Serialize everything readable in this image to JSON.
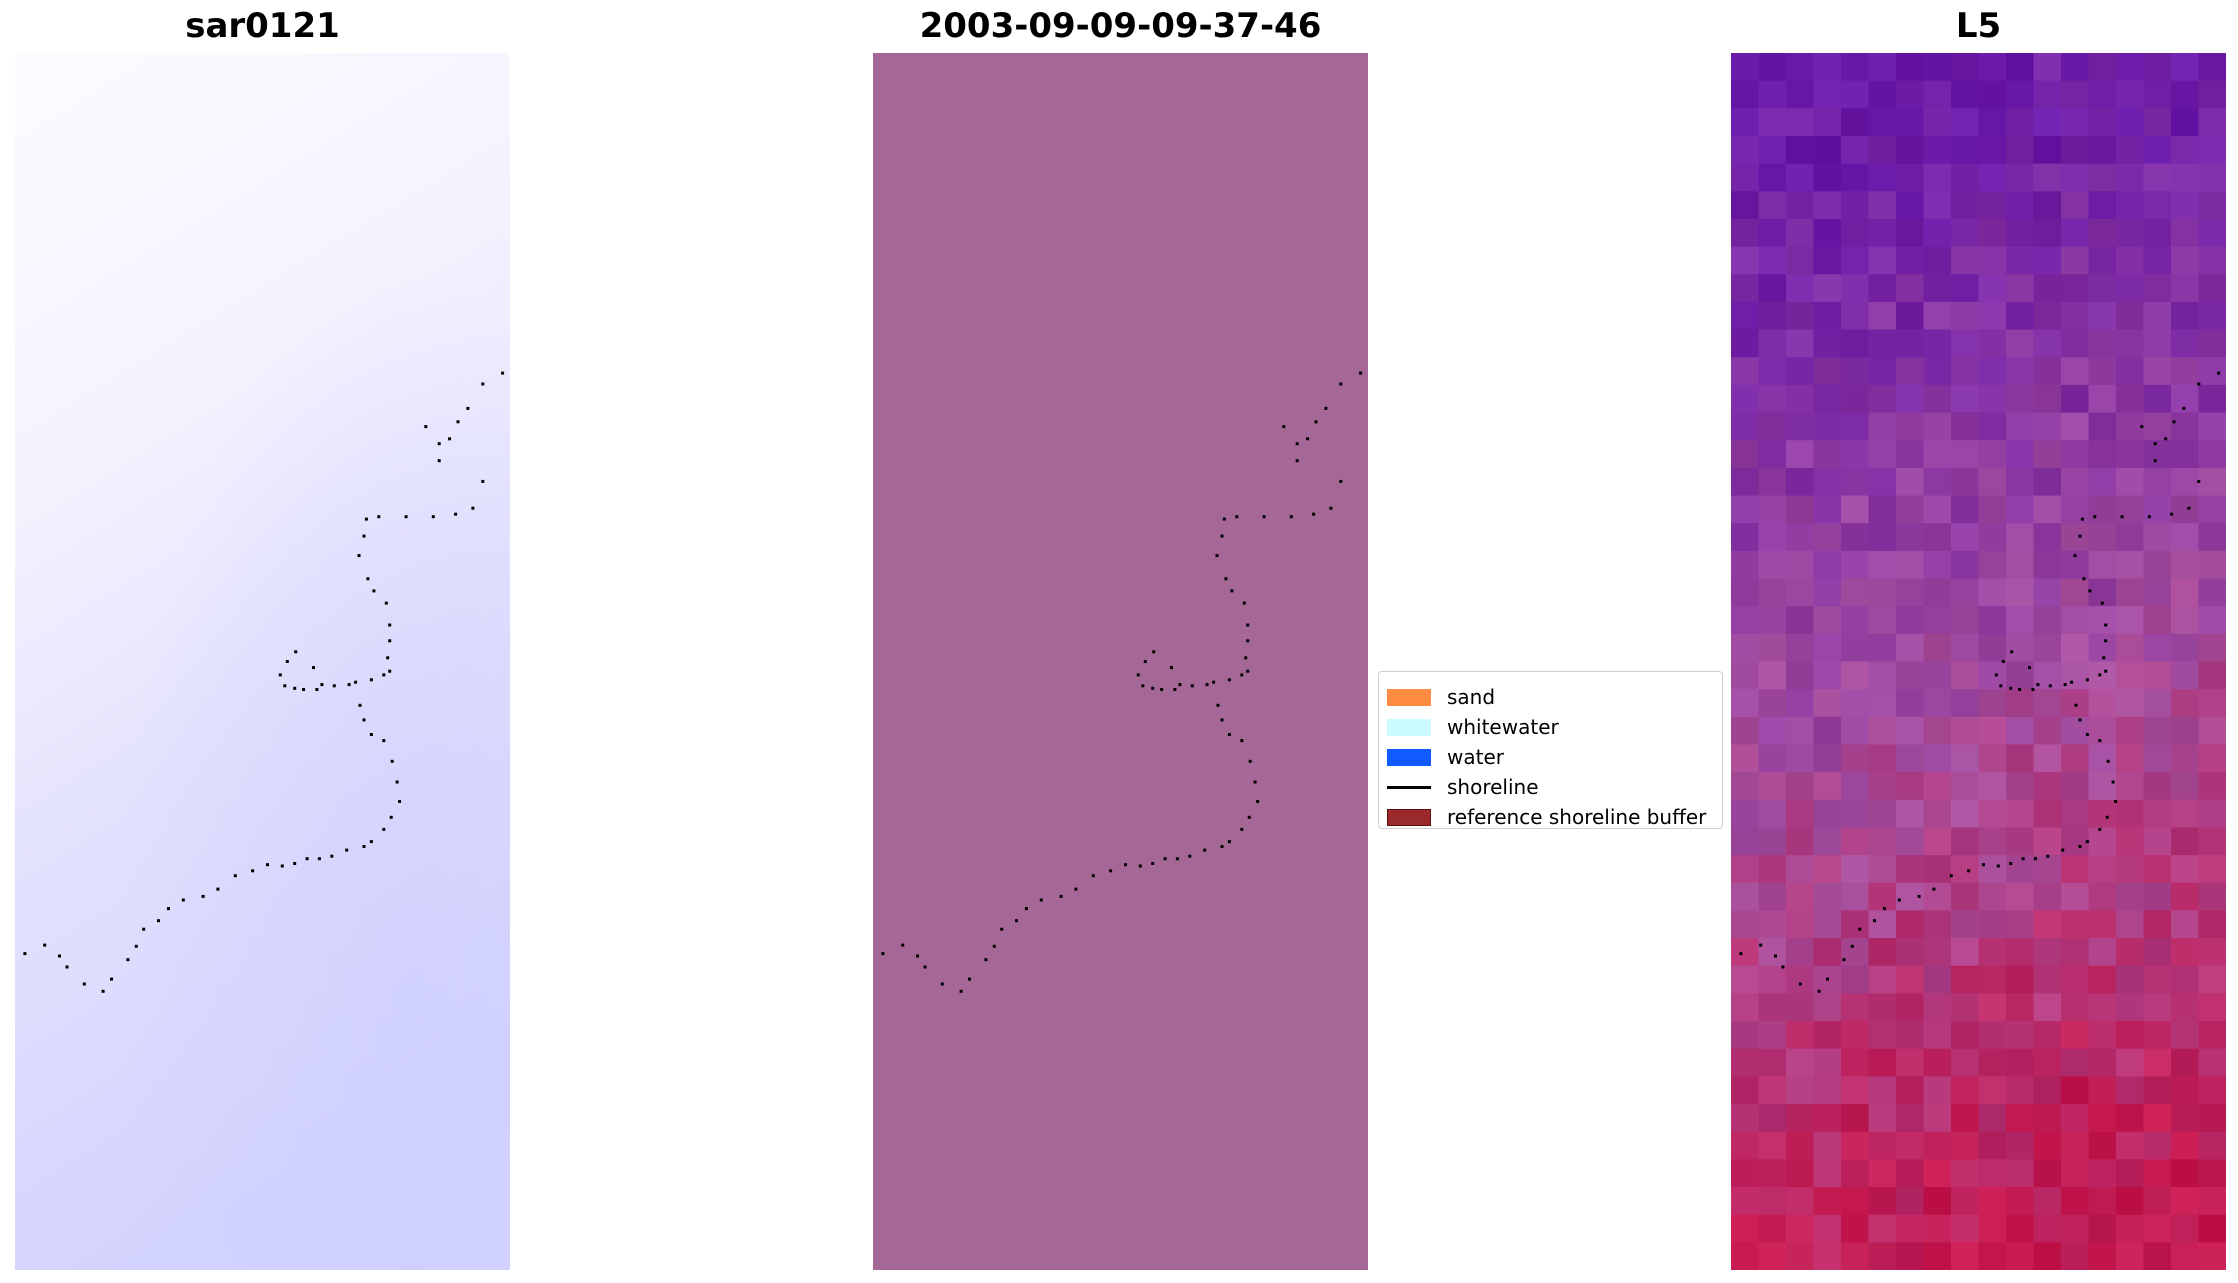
{
  "chart_data": [
    {
      "type": "heatmap",
      "title": "sar0121",
      "colormap": "bwr (near-white to lavender gradient)",
      "grid": false,
      "axes_visible": false,
      "colors": {
        "top": "#fdfbff",
        "bottom": "#d2d2fe"
      }
    },
    {
      "type": "heatmap",
      "title": "2003-09-09-09-37-46",
      "colors": {
        "fill": "#a56795"
      },
      "grid": false,
      "axes_visible": false
    },
    {
      "type": "heatmap",
      "title": "L5",
      "colormap": "purple to crimson pixelated raster",
      "grid": false,
      "axes_visible": false,
      "colors": {
        "top": "#6a1aa8",
        "middle": "#a74c9c",
        "bottom": "#c2164a"
      }
    }
  ],
  "shoreline": {
    "points": [
      [
        0.985,
        0.263
      ],
      [
        0.945,
        0.272
      ],
      [
        0.915,
        0.292
      ],
      [
        0.895,
        0.303
      ],
      [
        0.878,
        0.317
      ],
      [
        0.857,
        0.321
      ],
      [
        0.83,
        0.307
      ],
      [
        0.857,
        0.335
      ],
      [
        0.945,
        0.352
      ],
      [
        0.925,
        0.374
      ],
      [
        0.89,
        0.379
      ],
      [
        0.845,
        0.381
      ],
      [
        0.79,
        0.381
      ],
      [
        0.735,
        0.381
      ],
      [
        0.71,
        0.383
      ],
      [
        0.705,
        0.397
      ],
      [
        0.695,
        0.413
      ],
      [
        0.713,
        0.432
      ],
      [
        0.725,
        0.442
      ],
      [
        0.75,
        0.452
      ],
      [
        0.757,
        0.47
      ],
      [
        0.757,
        0.483
      ],
      [
        0.753,
        0.497
      ],
      [
        0.757,
        0.508
      ],
      [
        0.745,
        0.511
      ],
      [
        0.72,
        0.515
      ],
      [
        0.688,
        0.517
      ],
      [
        0.675,
        0.519
      ],
      [
        0.645,
        0.52
      ],
      [
        0.62,
        0.519
      ],
      [
        0.603,
        0.505
      ],
      [
        0.567,
        0.492
      ],
      [
        0.55,
        0.5
      ],
      [
        0.536,
        0.511
      ],
      [
        0.545,
        0.52
      ],
      [
        0.565,
        0.522
      ],
      [
        0.583,
        0.523
      ],
      [
        0.61,
        0.523
      ],
      [
        0.697,
        0.536
      ],
      [
        0.705,
        0.548
      ],
      [
        0.72,
        0.56
      ],
      [
        0.745,
        0.565
      ],
      [
        0.762,
        0.582
      ],
      [
        0.772,
        0.599
      ],
      [
        0.777,
        0.615
      ],
      [
        0.76,
        0.628
      ],
      [
        0.745,
        0.638
      ],
      [
        0.72,
        0.648
      ],
      [
        0.705,
        0.652
      ],
      [
        0.67,
        0.655
      ],
      [
        0.64,
        0.66
      ],
      [
        0.615,
        0.662
      ],
      [
        0.59,
        0.662
      ],
      [
        0.565,
        0.666
      ],
      [
        0.54,
        0.668
      ],
      [
        0.51,
        0.667
      ],
      [
        0.48,
        0.672
      ],
      [
        0.445,
        0.676
      ],
      [
        0.41,
        0.687
      ],
      [
        0.38,
        0.693
      ],
      [
        0.34,
        0.696
      ],
      [
        0.31,
        0.703
      ],
      [
        0.29,
        0.713
      ],
      [
        0.26,
        0.72
      ],
      [
        0.245,
        0.734
      ],
      [
        0.228,
        0.745
      ],
      [
        0.195,
        0.761
      ],
      [
        0.178,
        0.771
      ],
      [
        0.14,
        0.765
      ],
      [
        0.105,
        0.751
      ],
      [
        0.09,
        0.742
      ],
      [
        0.06,
        0.733
      ],
      [
        0.02,
        0.74
      ]
    ]
  },
  "legend": {
    "items": [
      {
        "label": "sand",
        "kind": "patch",
        "color": "#ff8c40"
      },
      {
        "label": "whitewater",
        "kind": "patch",
        "color": "#ccfcff"
      },
      {
        "label": "water",
        "kind": "patch",
        "color": "#0f5bff"
      },
      {
        "label": "shoreline",
        "kind": "line",
        "color": "#000000"
      },
      {
        "label": "reference shoreline buffer",
        "kind": "patch",
        "color": "#9a2a2c"
      }
    ]
  }
}
